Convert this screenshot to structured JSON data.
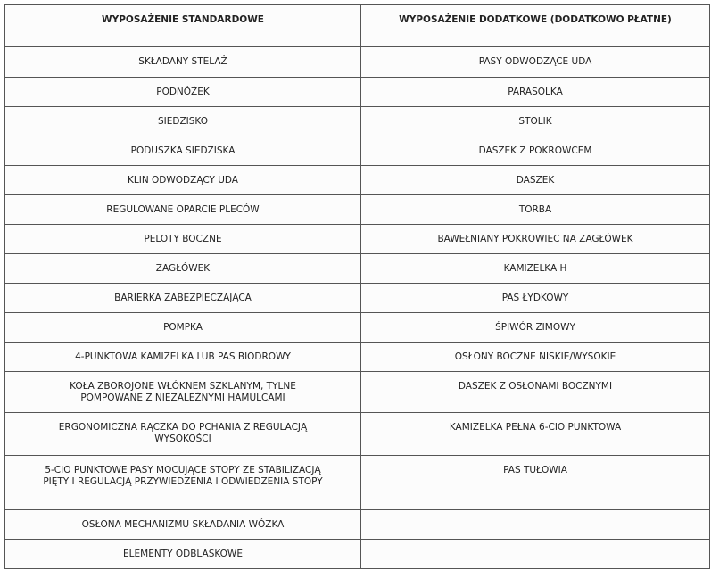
{
  "table": {
    "headers": [
      "WYPOSAŻENIE STANDARDOWE",
      "WYPOSAŻENIE DODATKOWE (DODATKOWO PŁATNE)"
    ],
    "rows": [
      [
        "SKŁADANY STELAŻ",
        "PASY ODWODZĄCE UDA"
      ],
      [
        "PODNÓŻEK",
        "PARASOLKA"
      ],
      [
        "SIEDZISKO",
        "STOLIK"
      ],
      [
        "PODUSZKA SIEDZISKA",
        "DASZEK Z POKROWCEM"
      ],
      [
        "KLIN ODWODZĄCY UDA",
        "DASZEK"
      ],
      [
        "REGULOWANE OPARCIE PLECÓW",
        "TORBA"
      ],
      [
        "PELOTY BOCZNE",
        "BAWEŁNIANY POKROWIEC NA ZAGŁÓWEK"
      ],
      [
        "ZAGŁÓWEK",
        "KAMIZELKA H"
      ],
      [
        "BARIERKA ZABEZPIECZAJĄCA",
        "PAS ŁYDKOWY"
      ],
      [
        "POMPKA",
        "ŚPIWÓR ZIMOWY"
      ],
      [
        "4-PUNKTOWA KAMIZELKA LUB PAS BIODROWY",
        "OSŁONY BOCZNE NISKIE/WYSOKIE"
      ],
      [
        "KOŁA ZBOROJONE WŁÓKNEM SZKLANYM, TYLNE POMPOWANE Z NIEZALEŻNYMI HAMULCAMI",
        "DASZEK Z OSŁONAMI BOCZNYMI"
      ],
      [
        "ERGONOMICZNA RĄCZKA DO PCHANIA Z REGULACJĄ WYSOKOŚCI",
        "KAMIZELKA PEŁNA 6-CIO PUNKTOWA"
      ],
      [
        "5-CIO PUNKTOWE PASY MOCUJĄCE STOPY ZE STABILIZACJĄ PIĘTY I REGULACJĄ PRZYWIEDZENIA I ODWIEDZENIA STOPY",
        "PAS TUŁOWIA"
      ],
      [
        "OSŁONA MECHANIZMU SKŁADANIA WÓZKA",
        ""
      ],
      [
        "ELEMENTY ODBLASKOWE",
        ""
      ]
    ]
  }
}
